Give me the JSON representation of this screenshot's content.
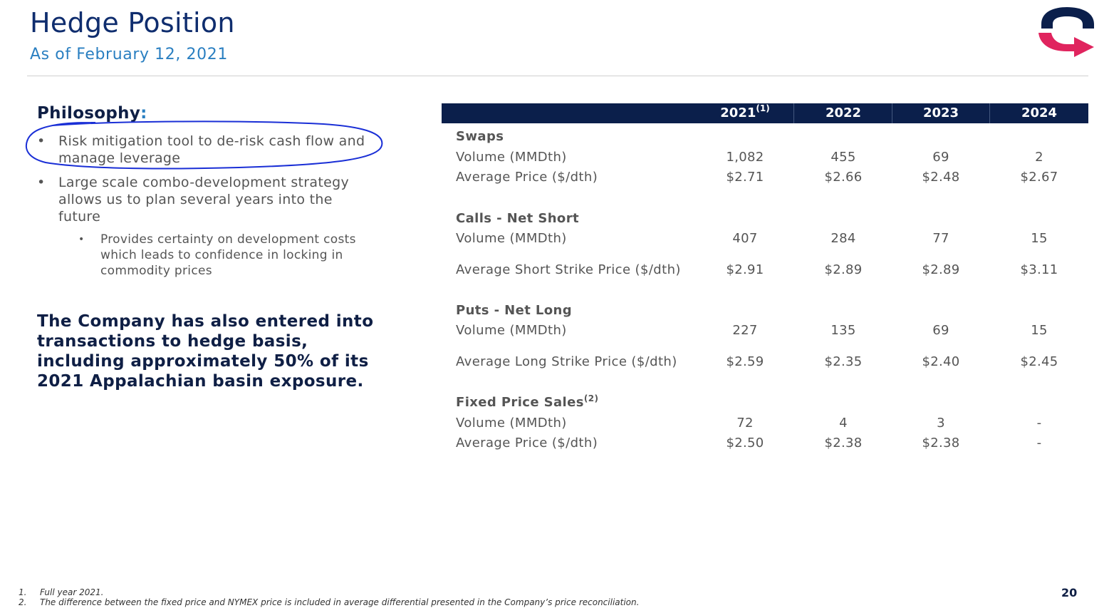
{
  "header": {
    "title": "Hedge Position",
    "subtitle": "As of February 12, 2021"
  },
  "philosophy": {
    "heading": "Philosophy",
    "colon": ":",
    "bullets": [
      "Risk mitigation tool to de-risk cash flow and manage leverage",
      "Large scale combo-development strategy allows us to plan several years into the future"
    ],
    "sub_bullets": [
      "Provides certainty on development costs which leads to confidence in locking in commodity prices"
    ],
    "bullet_char": "•"
  },
  "company_statement": "The Company has also entered into transactions to hedge basis, including approximately 50% of its 2021 Appalachian basin exposure.",
  "table": {
    "columns": [
      "2021",
      "2022",
      "2023",
      "2024"
    ],
    "column_superscripts": [
      "(1)",
      "",
      "",
      ""
    ],
    "sections": [
      {
        "name": "Swaps",
        "superscript": "",
        "rows": [
          {
            "label": "Volume (MMDth)",
            "values": [
              "1,082",
              "455",
              "69",
              "2"
            ]
          },
          {
            "label": "Average Price ($/dth)",
            "values": [
              "$2.71",
              "$2.66",
              "$2.48",
              "$2.67"
            ]
          }
        ]
      },
      {
        "name": "Calls - Net Short",
        "superscript": "",
        "rows": [
          {
            "label": "Volume (MMDth)",
            "values": [
              "407",
              "284",
              "77",
              "15"
            ]
          },
          {
            "label": "Average Short Strike Price ($/dth)",
            "values": [
              "$2.91",
              "$2.89",
              "$2.89",
              "$3.11"
            ]
          }
        ]
      },
      {
        "name": "Puts - Net Long",
        "superscript": "",
        "rows": [
          {
            "label": "Volume (MMDth)",
            "values": [
              "227",
              "135",
              "69",
              "15"
            ]
          },
          {
            "label": "Average Long Strike Price ($/dth)",
            "values": [
              "$2.59",
              "$2.35",
              "$2.40",
              "$2.45"
            ]
          }
        ]
      },
      {
        "name": "Fixed Price Sales",
        "superscript": "(2)",
        "rows": [
          {
            "label": "Volume (MMDth)",
            "values": [
              "72",
              "4",
              "3",
              "-"
            ]
          },
          {
            "label": "Average Price ($/dth)",
            "values": [
              "$2.50",
              "$2.38",
              "$2.38",
              "-"
            ]
          }
        ]
      }
    ]
  },
  "footnotes": [
    {
      "num": "1.",
      "text": "Full year 2021."
    },
    {
      "num": "2.",
      "text": "The difference between the fixed price and NYMEX price is included in average differential presented in the Company’s price reconciliation."
    }
  ],
  "page_number": "20",
  "colors": {
    "navy": "#0b1f4b",
    "title_blue": "#0f2d6e",
    "subtitle_blue": "#2a7fc1",
    "logo_pink": "#e0245e",
    "ink_blue": "#1a2fd6"
  },
  "icons": {
    "logo": "company-logo-icon",
    "annotation": "hand-drawn-ellipse"
  }
}
